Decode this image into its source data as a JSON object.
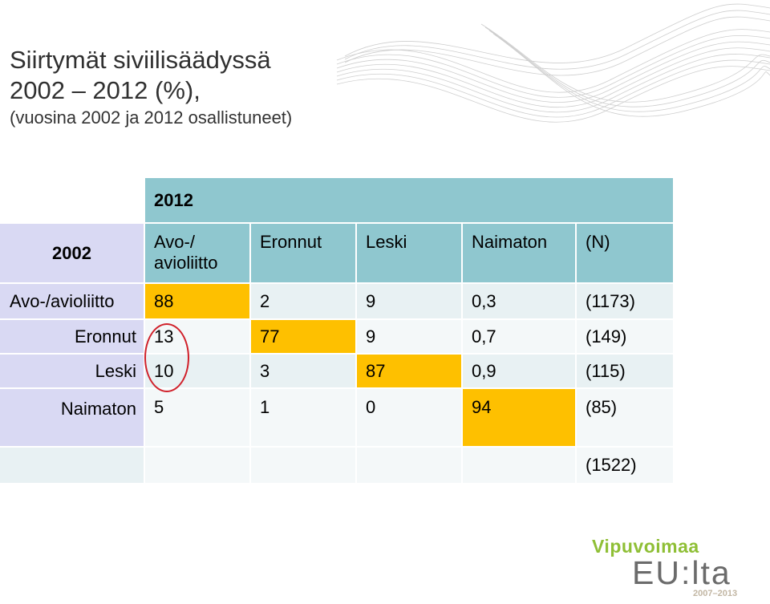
{
  "title": {
    "line1": "Siirtymät siviilisäädyssä",
    "line2": "2002 – 2012 (%),",
    "subtitle": "(vuosina 2002 ja 2012 osallistuneet)"
  },
  "table": {
    "year_columns_label": "2012",
    "year_rows_label": "2002",
    "column_headers": [
      "Avo-/\navioliitto",
      "Eronnut",
      "Leski",
      "Naimaton",
      "(N)"
    ],
    "rows": [
      {
        "label": "Avo-/avioliitto",
        "cells": [
          "88",
          "2",
          "9",
          "0,3",
          "(1173)"
        ]
      },
      {
        "label": "Eronnut",
        "cells": [
          "13",
          "77",
          "9",
          "0,7",
          "(149)"
        ]
      },
      {
        "label": "Leski",
        "cells": [
          "10",
          "3",
          "87",
          "0,9",
          "(115)"
        ]
      },
      {
        "label": "Naimaton",
        "cells": [
          "5",
          "1",
          "0",
          "94",
          "(85)"
        ]
      }
    ],
    "total": "(1522)"
  },
  "colors": {
    "header": "#8fc7cf",
    "row_label": "#d9d9f3",
    "highlight": "#fec000",
    "circle": "#d0202a"
  },
  "logo": {
    "top_text": "Vipuvoimaa",
    "main_text": "EU:lta",
    "years_text": "2007–2013"
  }
}
